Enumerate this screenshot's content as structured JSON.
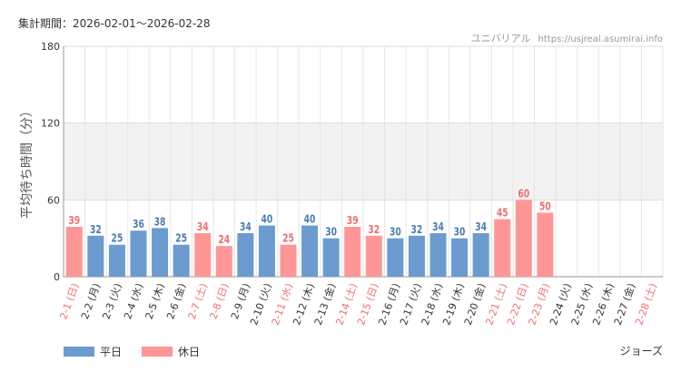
{
  "header": {
    "period_label": "集計期間：",
    "period_range": "2026-02-01〜2026-02-28",
    "site_name": "ユニバリアル",
    "site_url": "https://usjreal.asumirai.info"
  },
  "footer": {
    "attraction": "ジョーズ"
  },
  "colors": {
    "weekday": "#6b9bcf",
    "holiday": "#ff9696",
    "weekday_label": "#4a7bb0",
    "holiday_label": "#f06e6e",
    "band": "#f2f2f2",
    "grid": "#e6e6e6"
  },
  "chart_data": {
    "type": "bar",
    "title": "",
    "xlabel": "",
    "ylabel": "平均待ち時間（分）",
    "ylim": [
      0,
      180
    ],
    "yticks": [
      0,
      60,
      120,
      180
    ],
    "highlight_band": [
      60,
      120
    ],
    "legend": [
      "平日",
      "休日"
    ],
    "categories": [
      "2-1 (日)",
      "2-2 (月)",
      "2-3 (火)",
      "2-4 (水)",
      "2-5 (木)",
      "2-6 (金)",
      "2-7 (土)",
      "2-8 (日)",
      "2-9 (月)",
      "2-10 (火)",
      "2-11 (水)",
      "2-12 (木)",
      "2-13 (金)",
      "2-14 (土)",
      "2-15 (日)",
      "2-16 (月)",
      "2-17 (火)",
      "2-18 (水)",
      "2-19 (木)",
      "2-20 (金)",
      "2-21 (土)",
      "2-22 (日)",
      "2-23 (月)",
      "2-24 (火)",
      "2-25 (水)",
      "2-26 (木)",
      "2-27 (金)",
      "2-28 (土)"
    ],
    "values": [
      39,
      32,
      25,
      36,
      38,
      25,
      34,
      24,
      34,
      40,
      25,
      40,
      30,
      39,
      32,
      30,
      32,
      34,
      30,
      34,
      45,
      60,
      50,
      null,
      null,
      null,
      null,
      null
    ],
    "day_type": [
      "holiday",
      "weekday",
      "weekday",
      "weekday",
      "weekday",
      "weekday",
      "holiday",
      "holiday",
      "weekday",
      "weekday",
      "holiday",
      "weekday",
      "weekday",
      "holiday",
      "holiday",
      "weekday",
      "weekday",
      "weekday",
      "weekday",
      "weekday",
      "holiday",
      "holiday",
      "holiday",
      "weekday",
      "weekday",
      "weekday",
      "weekday",
      "holiday"
    ]
  }
}
